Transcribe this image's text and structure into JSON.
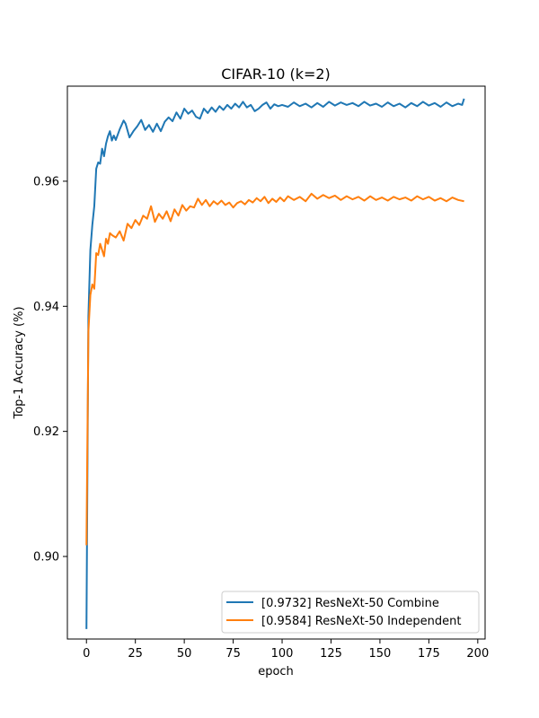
{
  "chart_data": {
    "type": "line",
    "title": "CIFAR-10 (k=2)",
    "xlabel": "epoch",
    "ylabel": "Top-1 Accuracy (%)",
    "xlim": [
      -9.75,
      203.75
    ],
    "ylim": [
      0.8868,
      0.9752
    ],
    "xticks": [
      0,
      25,
      50,
      75,
      100,
      125,
      150,
      175,
      200
    ],
    "xtick_labels": [
      "0",
      "25",
      "50",
      "75",
      "100",
      "125",
      "150",
      "175",
      "200"
    ],
    "yticks": [
      0.9,
      0.92,
      0.94,
      0.96
    ],
    "ytick_labels": [
      "0.90",
      "0.92",
      "0.94",
      "0.96"
    ],
    "grid": false,
    "legend_position": "lower-right",
    "series": [
      {
        "name": "[0.9732] ResNeXt-50 Combine",
        "color": "#1f77b4",
        "points": [
          [
            0,
            0.8884
          ],
          [
            1,
            0.9385
          ],
          [
            2,
            0.949
          ],
          [
            3,
            0.953
          ],
          [
            4,
            0.956
          ],
          [
            5,
            0.962
          ],
          [
            6,
            0.963
          ],
          [
            7,
            0.9628
          ],
          [
            8,
            0.9652
          ],
          [
            9,
            0.964
          ],
          [
            10,
            0.966
          ],
          [
            11,
            0.9672
          ],
          [
            12,
            0.968
          ],
          [
            13,
            0.9665
          ],
          [
            14,
            0.9673
          ],
          [
            15,
            0.9666
          ],
          [
            17,
            0.9683
          ],
          [
            19,
            0.9697
          ],
          [
            20,
            0.9692
          ],
          [
            22,
            0.967
          ],
          [
            24,
            0.968
          ],
          [
            26,
            0.9688
          ],
          [
            28,
            0.9698
          ],
          [
            30,
            0.9682
          ],
          [
            32,
            0.969
          ],
          [
            34,
            0.9679
          ],
          [
            36,
            0.9692
          ],
          [
            38,
            0.968
          ],
          [
            40,
            0.9695
          ],
          [
            42,
            0.9702
          ],
          [
            44,
            0.9696
          ],
          [
            46,
            0.971
          ],
          [
            48,
            0.97
          ],
          [
            50,
            0.9716
          ],
          [
            52,
            0.9708
          ],
          [
            54,
            0.9713
          ],
          [
            56,
            0.9703
          ],
          [
            58,
            0.97
          ],
          [
            60,
            0.9716
          ],
          [
            62,
            0.9709
          ],
          [
            64,
            0.9718
          ],
          [
            66,
            0.9711
          ],
          [
            68,
            0.972
          ],
          [
            70,
            0.9714
          ],
          [
            72,
            0.9722
          ],
          [
            74,
            0.9716
          ],
          [
            76,
            0.9724
          ],
          [
            78,
            0.9718
          ],
          [
            80,
            0.9727
          ],
          [
            82,
            0.9718
          ],
          [
            84,
            0.9722
          ],
          [
            86,
            0.9712
          ],
          [
            88,
            0.9716
          ],
          [
            90,
            0.9722
          ],
          [
            92,
            0.9726
          ],
          [
            94,
            0.9716
          ],
          [
            96,
            0.9723
          ],
          [
            98,
            0.972
          ],
          [
            100,
            0.9722
          ],
          [
            103,
            0.9719
          ],
          [
            106,
            0.9726
          ],
          [
            109,
            0.972
          ],
          [
            112,
            0.9724
          ],
          [
            115,
            0.9718
          ],
          [
            118,
            0.9725
          ],
          [
            121,
            0.9719
          ],
          [
            124,
            0.9727
          ],
          [
            127,
            0.9721
          ],
          [
            130,
            0.9726
          ],
          [
            133,
            0.9722
          ],
          [
            136,
            0.9725
          ],
          [
            139,
            0.972
          ],
          [
            142,
            0.9727
          ],
          [
            145,
            0.9721
          ],
          [
            148,
            0.9724
          ],
          [
            151,
            0.9719
          ],
          [
            154,
            0.9726
          ],
          [
            157,
            0.972
          ],
          [
            160,
            0.9724
          ],
          [
            163,
            0.9718
          ],
          [
            166,
            0.9725
          ],
          [
            169,
            0.972
          ],
          [
            172,
            0.9727
          ],
          [
            175,
            0.9721
          ],
          [
            178,
            0.9725
          ],
          [
            181,
            0.9719
          ],
          [
            184,
            0.9726
          ],
          [
            187,
            0.972
          ],
          [
            190,
            0.9724
          ],
          [
            192,
            0.9722
          ],
          [
            193,
            0.9732
          ]
        ]
      },
      {
        "name": "[0.9584] ResNeXt-50 Independent",
        "color": "#ff7f0e",
        "points": [
          [
            0,
            0.9018
          ],
          [
            1,
            0.936
          ],
          [
            2,
            0.9418
          ],
          [
            3,
            0.9435
          ],
          [
            4,
            0.9428
          ],
          [
            5,
            0.9485
          ],
          [
            6,
            0.9482
          ],
          [
            7,
            0.95
          ],
          [
            8,
            0.949
          ],
          [
            9,
            0.948
          ],
          [
            10,
            0.9508
          ],
          [
            11,
            0.95
          ],
          [
            12,
            0.9517
          ],
          [
            13,
            0.9514
          ],
          [
            15,
            0.951
          ],
          [
            17,
            0.952
          ],
          [
            19,
            0.9505
          ],
          [
            21,
            0.9532
          ],
          [
            23,
            0.9525
          ],
          [
            25,
            0.9538
          ],
          [
            27,
            0.953
          ],
          [
            29,
            0.9545
          ],
          [
            31,
            0.954
          ],
          [
            33,
            0.956
          ],
          [
            35,
            0.9535
          ],
          [
            37,
            0.9548
          ],
          [
            39,
            0.954
          ],
          [
            41,
            0.9552
          ],
          [
            43,
            0.9536
          ],
          [
            45,
            0.9555
          ],
          [
            47,
            0.9545
          ],
          [
            49,
            0.9562
          ],
          [
            51,
            0.9553
          ],
          [
            53,
            0.956
          ],
          [
            55,
            0.9558
          ],
          [
            57,
            0.9572
          ],
          [
            59,
            0.9562
          ],
          [
            61,
            0.957
          ],
          [
            63,
            0.956
          ],
          [
            65,
            0.9568
          ],
          [
            67,
            0.9563
          ],
          [
            69,
            0.9569
          ],
          [
            71,
            0.9562
          ],
          [
            73,
            0.9566
          ],
          [
            75,
            0.9558
          ],
          [
            77,
            0.9565
          ],
          [
            79,
            0.9568
          ],
          [
            81,
            0.9563
          ],
          [
            83,
            0.957
          ],
          [
            85,
            0.9566
          ],
          [
            87,
            0.9573
          ],
          [
            89,
            0.9568
          ],
          [
            91,
            0.9575
          ],
          [
            93,
            0.9565
          ],
          [
            95,
            0.9572
          ],
          [
            97,
            0.9567
          ],
          [
            99,
            0.9574
          ],
          [
            101,
            0.9568
          ],
          [
            103,
            0.9576
          ],
          [
            106,
            0.957
          ],
          [
            109,
            0.9575
          ],
          [
            112,
            0.9568
          ],
          [
            115,
            0.958
          ],
          [
            118,
            0.9572
          ],
          [
            121,
            0.9578
          ],
          [
            124,
            0.9573
          ],
          [
            127,
            0.9577
          ],
          [
            130,
            0.957
          ],
          [
            133,
            0.9576
          ],
          [
            136,
            0.9571
          ],
          [
            139,
            0.9575
          ],
          [
            142,
            0.9569
          ],
          [
            145,
            0.9576
          ],
          [
            148,
            0.957
          ],
          [
            151,
            0.9574
          ],
          [
            154,
            0.9569
          ],
          [
            157,
            0.9575
          ],
          [
            160,
            0.9571
          ],
          [
            163,
            0.9574
          ],
          [
            166,
            0.9569
          ],
          [
            169,
            0.9576
          ],
          [
            172,
            0.9571
          ],
          [
            175,
            0.9575
          ],
          [
            178,
            0.9569
          ],
          [
            181,
            0.9573
          ],
          [
            184,
            0.9568
          ],
          [
            187,
            0.9574
          ],
          [
            190,
            0.957
          ],
          [
            193,
            0.9568
          ]
        ]
      }
    ]
  }
}
